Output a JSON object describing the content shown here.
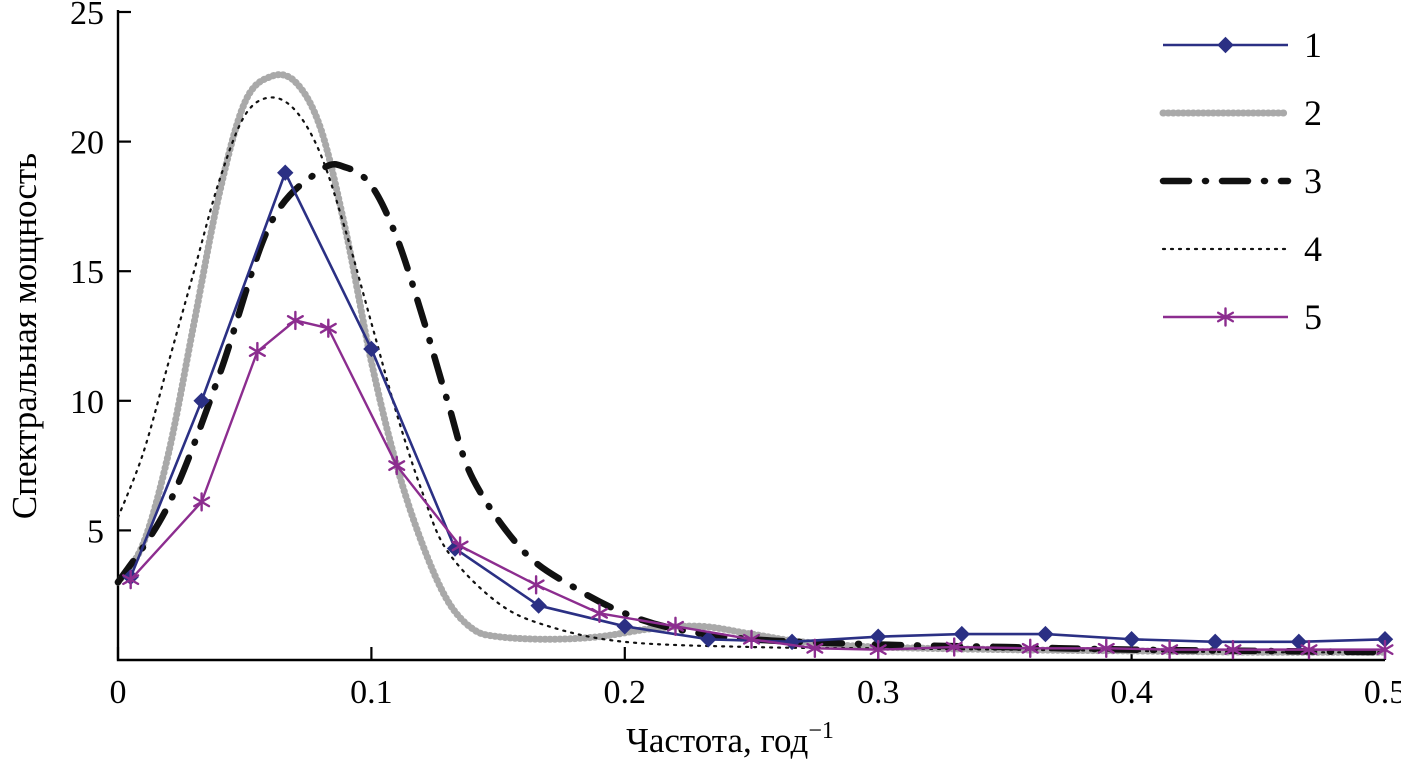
{
  "chart_data": {
    "type": "line",
    "title": "",
    "ylabel": "Спектральная мощность",
    "xlabel_base": "Частота, год",
    "xlabel_sup": "−1",
    "xlim": [
      0,
      0.5
    ],
    "ylim": [
      0,
      25
    ],
    "x_ticks": [
      0,
      0.1,
      0.2,
      0.3,
      0.4,
      0.5
    ],
    "x_tick_labels": [
      "0",
      "0.1",
      "0.2",
      "0.3",
      "0.4",
      "0.5"
    ],
    "y_ticks": [
      5,
      10,
      15,
      20,
      25
    ],
    "y_tick_labels": [
      "5",
      "10",
      "15",
      "20",
      "25"
    ],
    "grid": false,
    "legend_position": "top-right",
    "axis_color": "#000000",
    "series": [
      {
        "name": "1",
        "color": "#2b3084",
        "width": 2.6,
        "dash": "",
        "linecap": "butt",
        "marker": "diamond",
        "smooth": false,
        "x": [
          0.005,
          0.033,
          0.066,
          0.1,
          0.133,
          0.166,
          0.2,
          0.233,
          0.266,
          0.3,
          0.333,
          0.366,
          0.4,
          0.433,
          0.466,
          0.5
        ],
        "y": [
          3.2,
          10.0,
          18.8,
          12.0,
          4.3,
          2.1,
          1.3,
          0.8,
          0.7,
          0.9,
          1.0,
          1.0,
          0.8,
          0.7,
          0.7,
          0.8
        ]
      },
      {
        "name": "2",
        "color": "#a9a9a9",
        "width": 7,
        "dash": "0.6 4.4",
        "linecap": "round",
        "marker": "",
        "smooth": true,
        "x": [
          0,
          0.01,
          0.02,
          0.03,
          0.04,
          0.05,
          0.06,
          0.07,
          0.08,
          0.09,
          0.1,
          0.11,
          0.12,
          0.13,
          0.14,
          0.15,
          0.17,
          0.19,
          0.21,
          0.23,
          0.25,
          0.27,
          0.3,
          0.35,
          0.4,
          0.45,
          0.5
        ],
        "y": [
          3.0,
          4.5,
          8.0,
          13.0,
          18.0,
          21.5,
          22.5,
          22.3,
          20.5,
          16.5,
          11.5,
          7.5,
          4.5,
          2.3,
          1.2,
          0.9,
          0.8,
          0.9,
          1.2,
          1.3,
          1.0,
          0.7,
          0.5,
          0.4,
          0.35,
          0.3,
          0.3
        ]
      },
      {
        "name": "3",
        "color": "#111111",
        "width": 6.5,
        "dash": "26 16 1 16",
        "linecap": "round",
        "marker": "",
        "smooth": true,
        "x": [
          0,
          0.02,
          0.04,
          0.06,
          0.08,
          0.09,
          0.1,
          0.11,
          0.12,
          0.13,
          0.14,
          0.16,
          0.18,
          0.2,
          0.22,
          0.25,
          0.3,
          0.35,
          0.4,
          0.45,
          0.5
        ],
        "y": [
          3.0,
          6.0,
          11.0,
          16.8,
          18.9,
          19.0,
          18.3,
          16.3,
          13.3,
          10.0,
          7.0,
          4.2,
          2.8,
          1.8,
          1.2,
          0.8,
          0.6,
          0.5,
          0.4,
          0.35,
          0.3
        ]
      },
      {
        "name": "4",
        "color": "#111111",
        "width": 2.2,
        "dash": "2 6",
        "linecap": "round",
        "marker": "",
        "smooth": true,
        "x": [
          0,
          0.01,
          0.02,
          0.03,
          0.04,
          0.05,
          0.06,
          0.07,
          0.08,
          0.09,
          0.1,
          0.11,
          0.12,
          0.13,
          0.15,
          0.17,
          0.2,
          0.25,
          0.3,
          0.35,
          0.4,
          0.45,
          0.5
        ],
        "y": [
          5.5,
          8.0,
          11.5,
          15.0,
          18.5,
          21.0,
          21.7,
          21.2,
          19.5,
          16.5,
          13.0,
          9.5,
          6.5,
          4.2,
          2.2,
          1.3,
          0.7,
          0.5,
          0.45,
          0.4,
          0.35,
          0.3,
          0.3
        ]
      },
      {
        "name": "5",
        "color": "#8c2d8f",
        "width": 2.4,
        "dash": "",
        "linecap": "butt",
        "marker": "asterisk",
        "smooth": false,
        "x": [
          0.005,
          0.033,
          0.055,
          0.07,
          0.083,
          0.11,
          0.135,
          0.165,
          0.19,
          0.22,
          0.25,
          0.275,
          0.3,
          0.33,
          0.36,
          0.39,
          0.415,
          0.44,
          0.47,
          0.5
        ],
        "y": [
          3.1,
          6.1,
          11.9,
          13.1,
          12.8,
          7.5,
          4.4,
          2.9,
          1.8,
          1.3,
          0.8,
          0.45,
          0.4,
          0.5,
          0.45,
          0.45,
          0.4,
          0.4,
          0.4,
          0.4
        ]
      }
    ]
  }
}
